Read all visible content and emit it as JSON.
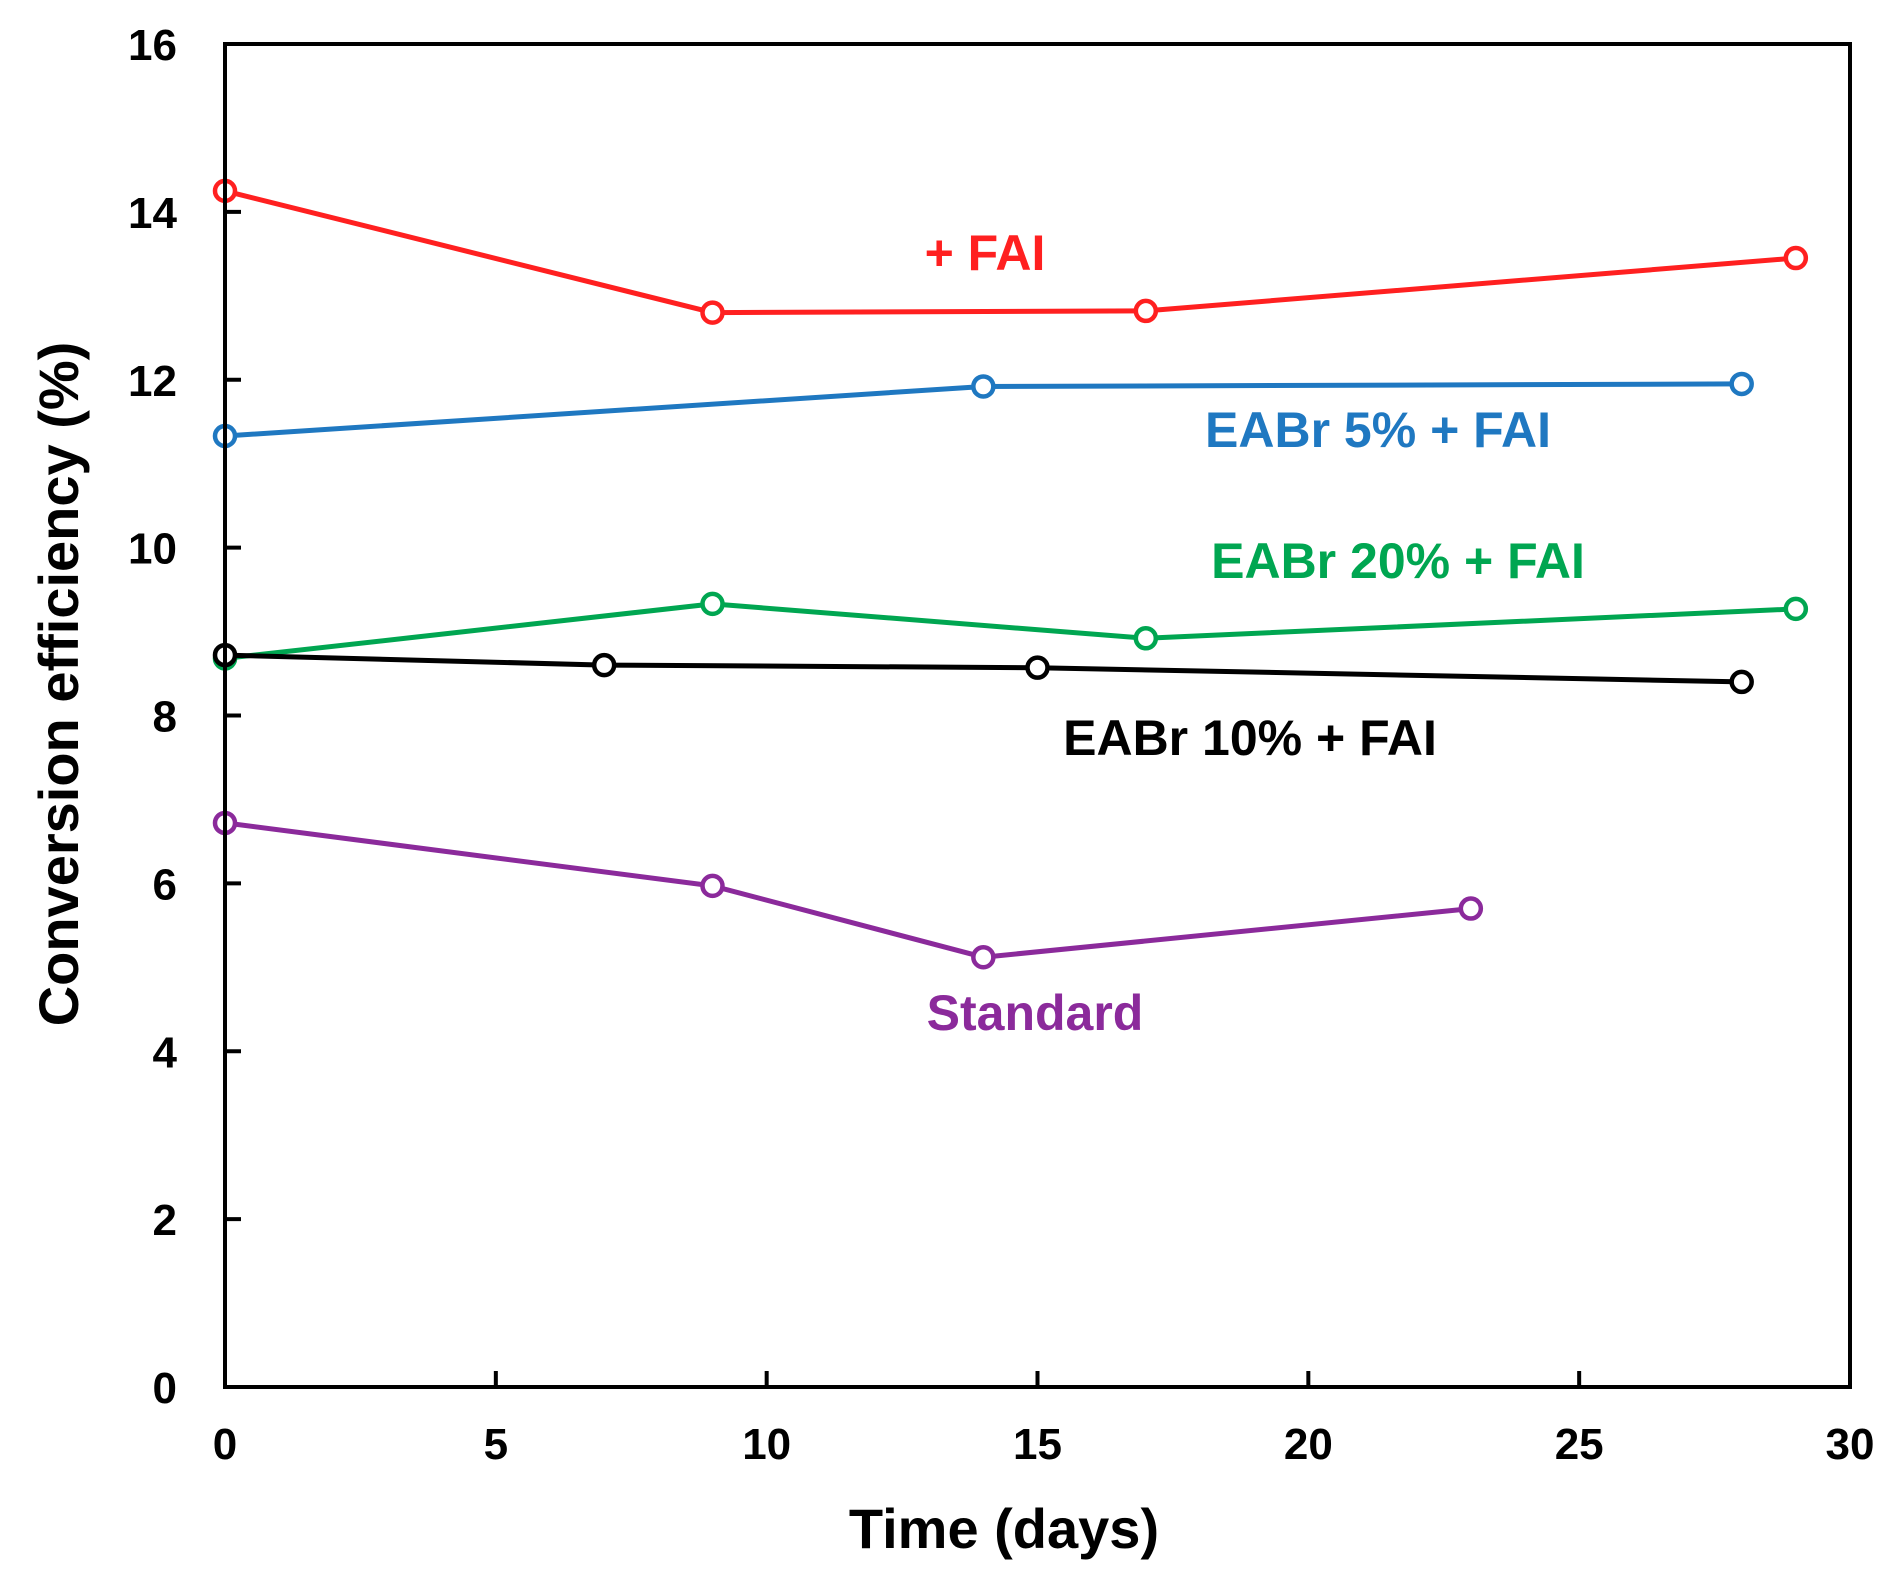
{
  "chart_data": {
    "type": "line",
    "xlabel": "Time (days)",
    "ylabel": "Conversion efficiency (%)",
    "xlim": [
      0,
      30
    ],
    "ylim": [
      0,
      16
    ],
    "xticks": [
      0,
      5,
      10,
      15,
      20,
      25,
      30
    ],
    "yticks": [
      0,
      2,
      4,
      6,
      8,
      10,
      12,
      14,
      16
    ],
    "grid": false,
    "legend": "inline labels next to each series",
    "series": [
      {
        "name": "+ FAI",
        "color": "#ff2020",
        "marker": "open-circle",
        "x": [
          0,
          9,
          17,
          29
        ],
        "y": [
          14.25,
          12.8,
          12.82,
          13.45
        ]
      },
      {
        "name": "EABr 5% + FAI",
        "color": "#1f78c1",
        "marker": "open-circle",
        "x": [
          0,
          14,
          28
        ],
        "y": [
          11.33,
          11.92,
          11.95
        ]
      },
      {
        "name": "EABr 20% + FAI",
        "color": "#00a651",
        "marker": "open-circle",
        "x": [
          0,
          9,
          17,
          29
        ],
        "y": [
          8.68,
          9.33,
          8.92,
          9.27
        ]
      },
      {
        "name": "EABr 10% + FAI",
        "color": "#000000",
        "marker": "open-circle",
        "x": [
          0,
          7,
          15,
          28
        ],
        "y": [
          8.72,
          8.6,
          8.57,
          8.4
        ]
      },
      {
        "name": "Standard",
        "color": "#8b2a9b",
        "marker": "open-circle",
        "x": [
          0,
          9,
          14,
          23
        ],
        "y": [
          6.72,
          5.97,
          5.12,
          5.7
        ]
      }
    ]
  }
}
